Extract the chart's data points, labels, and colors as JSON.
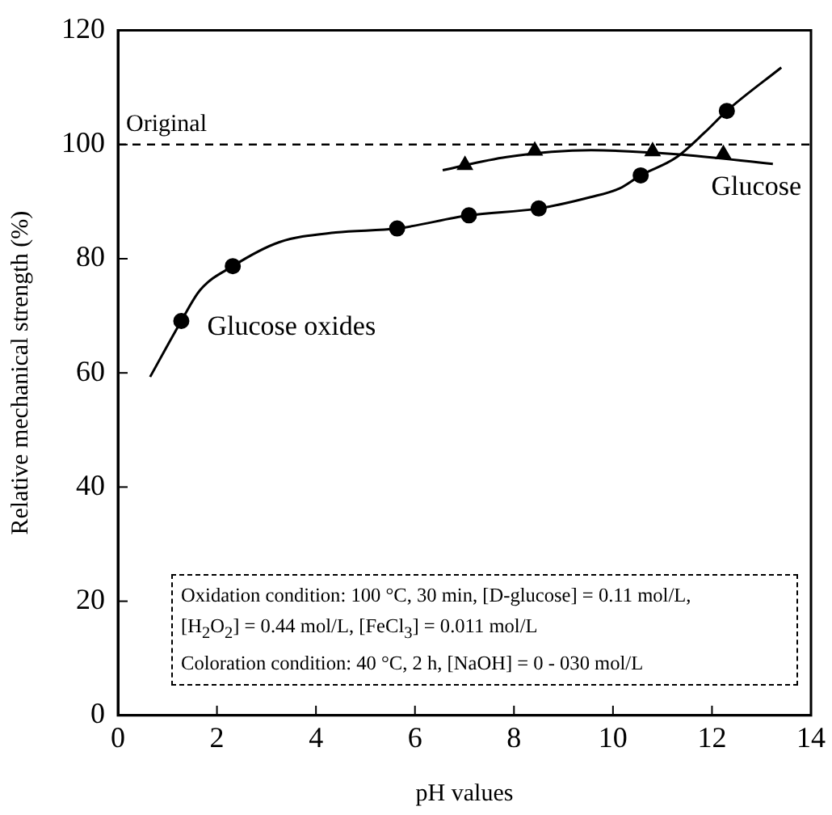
{
  "chart_data": {
    "type": "scatter",
    "xlabel": "pH values",
    "ylabel": "Relative mechanical strength (%)",
    "xlim": [
      0,
      14
    ],
    "xticks": [
      0,
      2,
      4,
      6,
      8,
      10,
      12,
      14
    ],
    "ylim": [
      0,
      120
    ],
    "yticks": [
      0,
      20,
      40,
      60,
      80,
      100,
      120
    ],
    "grid": false,
    "legend": false,
    "series": [
      {
        "name": "Glucose oxides",
        "marker": "circle",
        "color": "#000000",
        "x": [
          1.28,
          2.32,
          5.64,
          7.09,
          8.5,
          10.56,
          12.3
        ],
        "values": [
          69.1,
          78.7,
          85.3,
          87.6,
          88.8,
          94.6,
          105.9
        ]
      },
      {
        "type": "line",
        "marker": "none",
        "color": "#000000",
        "x": [
          0.65,
          1.28,
          1.66,
          2.32,
          3.26,
          4.4,
          5.64,
          7.09,
          8.5,
          9.55,
          10.13,
          10.56,
          11.27,
          11.85,
          12.3,
          13.4
        ],
        "values": [
          59.3,
          69.1,
          74.5,
          78.7,
          82.9,
          84.6,
          85.3,
          87.6,
          88.8,
          90.8,
          92.3,
          94.6,
          97.7,
          102.1,
          105.9,
          113.5
        ]
      },
      {
        "name": "Glucose",
        "marker": "triangle",
        "color": "#000000",
        "x": [
          7.01,
          8.42,
          10.8,
          12.23
        ],
        "values": [
          96.4,
          98.9,
          98.8,
          98.3
        ]
      },
      {
        "type": "line",
        "marker": "none",
        "color": "#000000",
        "x": [
          6.56,
          7.85,
          9.56,
          11.28,
          13.23
        ],
        "values": [
          95.5,
          97.8,
          99,
          98.3,
          96.6
        ]
      }
    ],
    "ref_lines": [
      {
        "axis": "y",
        "value": 100,
        "label": "Original",
        "color": "#000000",
        "line_style": "dashed"
      }
    ],
    "annotations": [
      "Oxidation condition: 100 °C, 30 min, [D-glucose] = 0.11 mol/L,",
      "[H$_{2}$O$_{2}$] = 0.44 mol/L, [FeCl$_{3}$] = 0.011 mol/L",
      "Coloration condition: 40 °C, 2 h, [NaOH] = 0 - 030 mol/L"
    ]
  }
}
